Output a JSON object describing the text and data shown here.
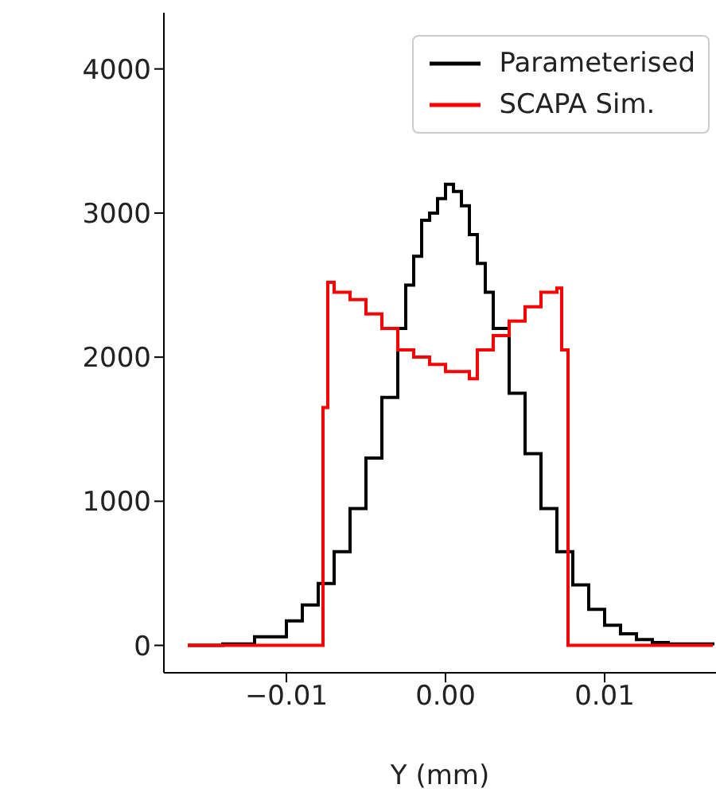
{
  "chart_data": {
    "type": "step",
    "xlabel": "Y (mm)",
    "xlim": [
      -0.0177,
      0.017
    ],
    "xticks": [
      {
        "value": -0.01,
        "label": "−0.01"
      },
      {
        "value": 0,
        "label": "0.00"
      },
      {
        "value": 0.01,
        "label": "0.01"
      }
    ],
    "ylim": [
      -190,
      4390
    ],
    "yticks": [
      0,
      1000,
      2000,
      3000,
      4000
    ],
    "grid": false,
    "legend": "top right",
    "series": [
      {
        "name": "Parameterised",
        "color": "#000000",
        "x": [
          -0.0162,
          -0.014,
          -0.012,
          -0.01,
          -0.009,
          -0.008,
          -0.007,
          -0.006,
          -0.005,
          -0.004,
          -0.003,
          -0.0025,
          -0.002,
          -0.0015,
          -0.001,
          -0.0005,
          0,
          0.0005,
          0.001,
          0.0015,
          0.002,
          0.0025,
          0.003,
          0.004,
          0.005,
          0.006,
          0.007,
          0.008,
          0.009,
          0.01,
          0.011,
          0.012,
          0.013,
          0.014,
          0.0168
        ],
        "values": [
          0,
          10,
          60,
          170,
          280,
          430,
          650,
          950,
          1300,
          1720,
          2200,
          2500,
          2700,
          2950,
          3000,
          3100,
          3200,
          3150,
          3050,
          2850,
          2650,
          2450,
          2200,
          1750,
          1330,
          950,
          650,
          420,
          250,
          140,
          80,
          40,
          20,
          10,
          0
        ]
      },
      {
        "name": "SCAPA Sim.",
        "color": "#ff0000",
        "x": [
          -0.0162,
          -0.0077,
          -0.0074,
          -0.007,
          -0.006,
          -0.005,
          -0.004,
          -0.003,
          -0.002,
          -0.001,
          0,
          0.0015,
          0.002,
          0.003,
          0.004,
          0.005,
          0.006,
          0.007,
          0.0073,
          0.0077,
          0.0168
        ],
        "values": [
          0,
          1650,
          2520,
          2450,
          2400,
          2300,
          2200,
          2050,
          2000,
          1950,
          1900,
          1850,
          2050,
          2150,
          2250,
          2350,
          2450,
          2480,
          2050,
          0,
          0
        ]
      }
    ]
  }
}
